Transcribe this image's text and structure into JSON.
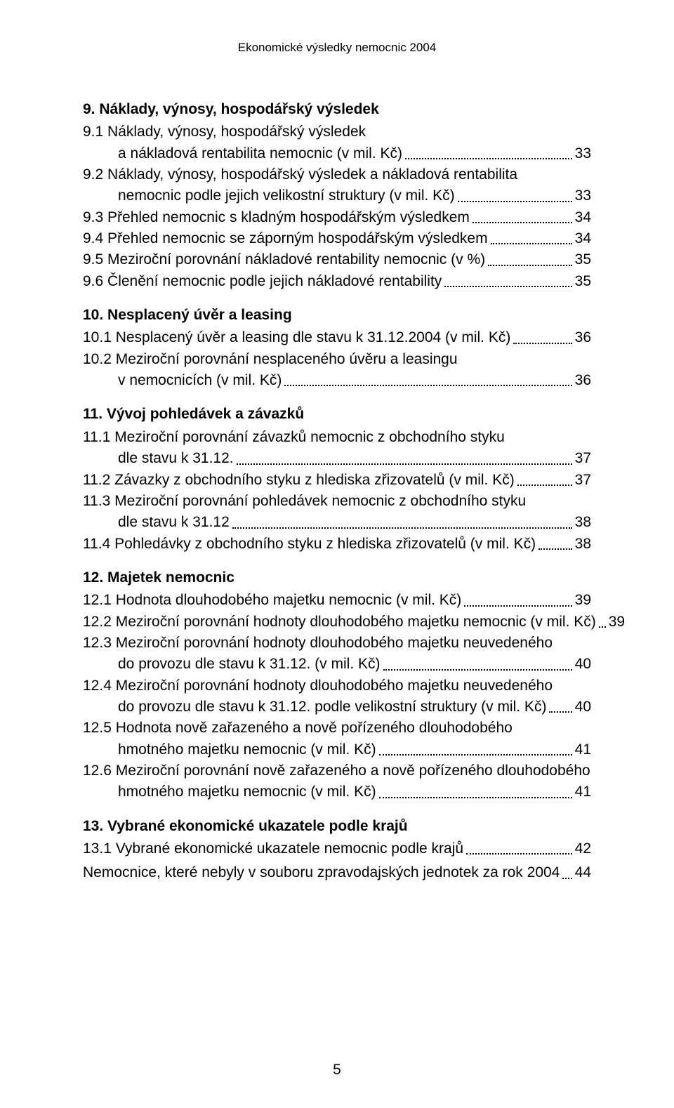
{
  "header": "Ekonomické výsledky nemocnic 2004",
  "page_number": "5",
  "sections": [
    {
      "title": "9. Náklady, výnosy, hospodářský výsledek",
      "entries": [
        {
          "first": "9.1  Náklady, výnosy, hospodářský výsledek",
          "cont": "a nákladová rentabilita nemocnic (v mil. Kč)",
          "page": "33"
        },
        {
          "first": "9.2  Náklady, výnosy, hospodářský výsledek a nákladová rentabilita",
          "cont": "nemocnic podle jejich velikostní struktury (v mil. Kč)",
          "page": "33"
        },
        {
          "single": "9.3  Přehled nemocnic s kladným hospodářským výsledkem",
          "page": "34"
        },
        {
          "single": "9.4  Přehled nemocnic se záporným hospodářským výsledkem",
          "page": "34"
        },
        {
          "single": "9.5  Meziroční porovnání nákladové rentability nemocnic (v %)",
          "page": "35"
        },
        {
          "single": "9.6  Členění nemocnic podle jejich nákladové rentability",
          "page": "35"
        }
      ]
    },
    {
      "title": "10. Nesplacený úvěr a leasing",
      "entries": [
        {
          "single": "10.1 Nesplacený úvěr a leasing dle stavu k 31.12.2004 (v mil. Kč)",
          "page": "36"
        },
        {
          "first": "10.2 Meziroční porovnání nesplaceného úvěru a leasingu",
          "cont": "v nemocnicích (v mil. Kč)",
          "page": "36"
        }
      ]
    },
    {
      "title": "11. Vývoj pohledávek a závazků",
      "entries": [
        {
          "first": "11.1 Meziroční porovnání závazků nemocnic z obchodního styku",
          "cont": "dle stavu k 31.12.",
          "page": "37"
        },
        {
          "single": "11.2 Závazky z obchodního styku z hlediska zřizovatelů (v mil. Kč)",
          "page": "37"
        },
        {
          "first": "11.3 Meziroční porovnání pohledávek nemocnic z obchodního styku",
          "cont": "dle stavu k 31.12",
          "page": "38"
        },
        {
          "single": "11.4 Pohledávky z obchodního styku z hlediska zřizovatelů (v mil. Kč)",
          "page": "38"
        }
      ]
    },
    {
      "title": "12. Majetek nemocnic",
      "entries": [
        {
          "single": "12.1 Hodnota dlouhodobého majetku nemocnic (v mil. Kč)",
          "page": "39"
        },
        {
          "single": "12.2 Meziroční porovnání hodnoty dlouhodobého majetku nemocnic (v mil. Kč)",
          "page": "39"
        },
        {
          "first": "12.3 Meziroční porovnání hodnoty dlouhodobého majetku neuvedeného",
          "cont": "do provozu dle stavu k 31.12. (v mil. Kč)",
          "page": "40"
        },
        {
          "first": "12.4 Meziroční porovnání hodnoty dlouhodobého majetku neuvedeného",
          "cont": "do provozu dle stavu k 31.12. podle velikostní struktury (v mil. Kč)",
          "page": "40"
        },
        {
          "first": "12.5 Hodnota nově zařazeného a nově pořízeného dlouhodobého",
          "cont": "hmotného majetku nemocnic (v mil. Kč)",
          "page": "41"
        },
        {
          "first": "12.6 Meziroční porovnání nově zařazeného a nově pořízeného dlouhodobého",
          "cont": "hmotného majetku nemocnic (v mil. Kč)",
          "page": "41"
        }
      ]
    },
    {
      "title": "13. Vybrané ekonomické ukazatele podle krajů",
      "entries": [
        {
          "single": "13.1 Vybrané ekonomické ukazatele nemocnic podle krajů",
          "page": "42"
        }
      ]
    }
  ],
  "footer_entry": {
    "single": "Nemocnice, které nebyly v souboru zpravodajských jednotek za rok 2004",
    "page": "44"
  }
}
